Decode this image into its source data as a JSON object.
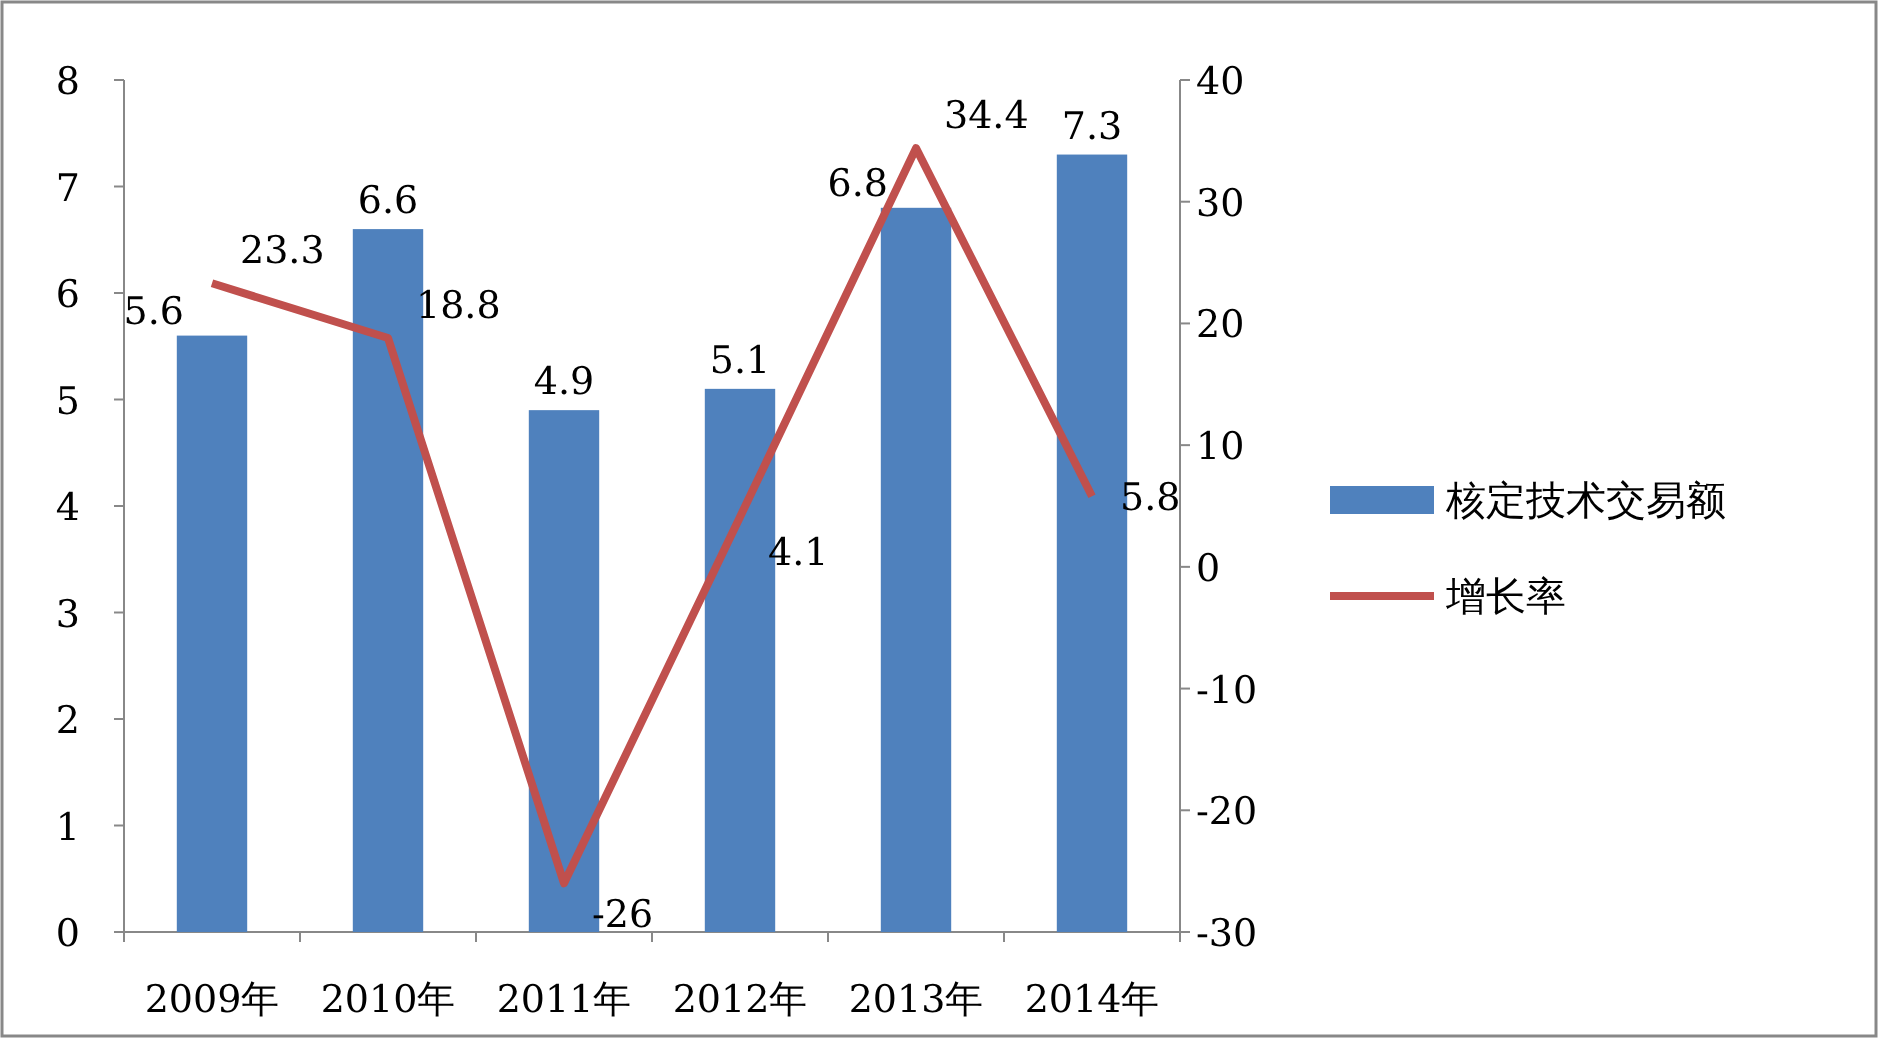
{
  "chart_data": {
    "type": "bar",
    "categories": [
      "2009年",
      "2010年",
      "2011年",
      "2012年",
      "2013年",
      "2014年"
    ],
    "series": [
      {
        "name": "核定技术交易额",
        "color": "#4f81bd",
        "values": [
          5.6,
          6.6,
          4.9,
          5.1,
          6.8,
          7.3
        ]
      },
      {
        "name": "增长率",
        "type": "line",
        "axis": "y2",
        "color": "#c0504d",
        "values": [
          23.3,
          18.8,
          -26,
          4.1,
          34.4,
          5.8
        ]
      }
    ],
    "ylim": [
      0,
      8
    ],
    "yticks": [
      0,
      1,
      2,
      3,
      4,
      5,
      6,
      7,
      8
    ],
    "y2lim": [
      -30,
      40
    ],
    "y2ticks": [
      -30,
      -20,
      -10,
      0,
      10,
      20,
      30,
      40
    ],
    "data_labels": true,
    "legend": "right",
    "grid": false,
    "marker": "none",
    "line_style": "solid"
  }
}
